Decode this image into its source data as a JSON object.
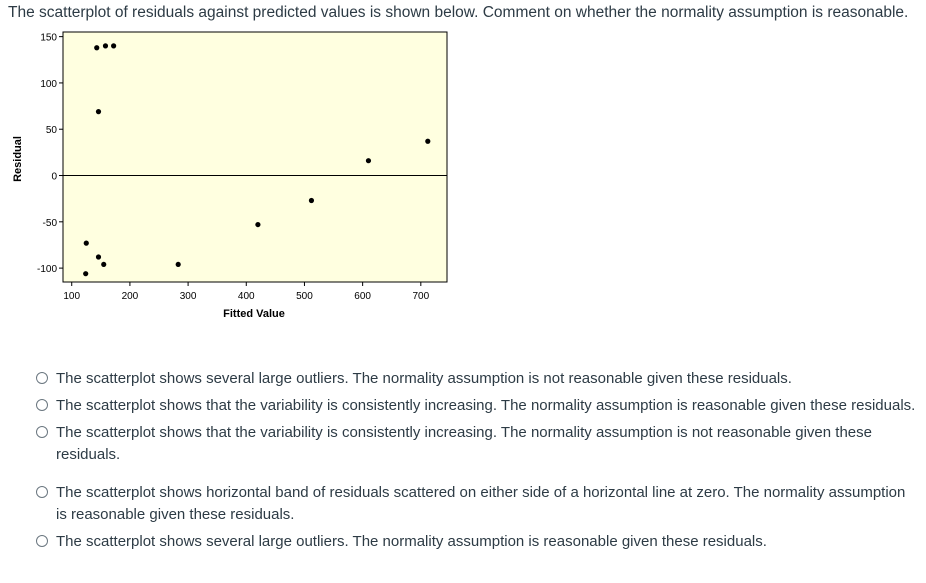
{
  "question": "The scatterplot of residuals against predicted values is shown below. Comment on whether the normality assumption is reasonable.",
  "chart_data": {
    "type": "scatter",
    "xlabel": "Fitted Value",
    "ylabel": "Residual",
    "xlim": [
      85,
      745
    ],
    "ylim": [
      -115,
      155
    ],
    "xticks": [
      100,
      200,
      300,
      400,
      500,
      600,
      700
    ],
    "yticks": [
      150,
      100,
      50,
      0,
      -50,
      -100
    ],
    "reference_line_y": 0,
    "background": "#ffffe0",
    "point_color": "#000000",
    "grid": false,
    "points": [
      {
        "x": 143,
        "y": 138
      },
      {
        "x": 158,
        "y": 140
      },
      {
        "x": 172,
        "y": 140
      },
      {
        "x": 146,
        "y": 69
      },
      {
        "x": 610,
        "y": 16
      },
      {
        "x": 712,
        "y": 37
      },
      {
        "x": 512,
        "y": -27
      },
      {
        "x": 420,
        "y": -53
      },
      {
        "x": 125,
        "y": -73
      },
      {
        "x": 146,
        "y": -88
      },
      {
        "x": 155,
        "y": -96
      },
      {
        "x": 283,
        "y": -96
      },
      {
        "x": 124,
        "y": -106
      }
    ]
  },
  "options": [
    {
      "label": "The scatterplot shows several large outliers. The normality assumption is not reasonable given these residuals."
    },
    {
      "label": "The scatterplot shows that the variability is consistently increasing. The normality assumption is reasonable given these residuals."
    },
    {
      "label": "The scatterplot shows that the variability is consistently increasing. The normality assumption is not reasonable given these residuals."
    },
    {
      "label": "The scatterplot shows horizontal band of residuals scattered on either side of a horizontal line at zero. The normality assumption is reasonable given these residuals."
    },
    {
      "label": "The scatterplot shows several large outliers. The normality assumption is reasonable given these residuals."
    }
  ]
}
